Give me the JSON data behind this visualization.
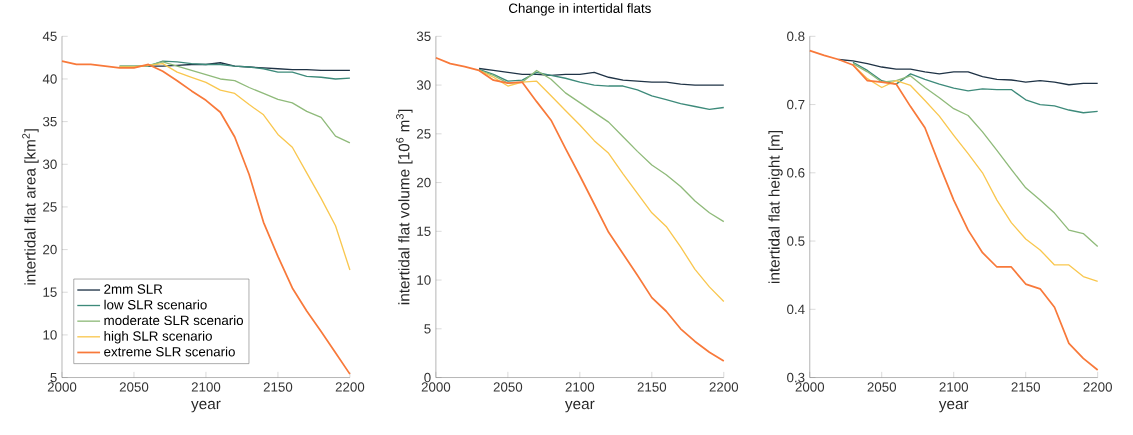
{
  "chart_data": [
    {
      "type": "line",
      "xlabel": "year",
      "ylabel": "intertidal flat area [km$^{2}$]",
      "x": [
        2000,
        2010,
        2020,
        2030,
        2040,
        2050,
        2060,
        2070,
        2080,
        2090,
        2100,
        2110,
        2120,
        2130,
        2140,
        2150,
        2160,
        2170,
        2180,
        2190,
        2200
      ],
      "series": [
        {
          "name": "2mm SLR",
          "color": "#1f3346",
          "values": [
            null,
            null,
            null,
            null,
            null,
            null,
            41.5,
            41.5,
            41.6,
            41.7,
            41.7,
            41.9,
            41.5,
            41.4,
            41.3,
            41.2,
            41.1,
            41.1,
            41.0,
            41.0,
            41.0
          ]
        },
        {
          "name": "low SLR scenario",
          "color": "#3d8a7a",
          "values": [
            null,
            null,
            null,
            null,
            41.5,
            41.5,
            41.5,
            42.1,
            42.0,
            41.8,
            41.7,
            41.7,
            41.5,
            41.4,
            41.2,
            40.8,
            40.8,
            40.3,
            40.2,
            40.0,
            40.1
          ]
        },
        {
          "name": "moderate SLR scenario",
          "color": "#8fba7a",
          "values": [
            null,
            null,
            null,
            null,
            41.5,
            41.5,
            41.6,
            42.0,
            41.5,
            41.0,
            40.5,
            40.0,
            39.8,
            39.0,
            38.3,
            37.6,
            37.2,
            36.2,
            35.5,
            33.3,
            32.5
          ]
        },
        {
          "name": "high SLR scenario",
          "color": "#f9c74f",
          "values": [
            null,
            null,
            null,
            null,
            41.4,
            41.4,
            41.6,
            41.8,
            40.8,
            40.2,
            39.6,
            38.7,
            38.3,
            37.0,
            35.8,
            33.5,
            32.0,
            29.0,
            26.0,
            22.8,
            17.6
          ]
        },
        {
          "name": "extreme SLR scenario",
          "color": "#f8793a",
          "values": [
            42.1,
            41.7,
            41.7,
            41.5,
            41.3,
            41.3,
            41.7,
            40.9,
            39.8,
            38.6,
            37.5,
            36.1,
            33.2,
            28.8,
            23.2,
            19.2,
            15.5,
            12.8,
            10.4,
            7.9,
            5.4
          ]
        }
      ],
      "xlim": [
        2000,
        2200
      ],
      "ylim": [
        5,
        45
      ],
      "xticks": [
        2000,
        2050,
        2100,
        2150,
        2200
      ],
      "yticks": [
        5,
        10,
        15,
        20,
        25,
        30,
        35,
        40,
        45
      ],
      "legend": "bottom left"
    },
    {
      "type": "line",
      "title": "Change in intertidal flats",
      "xlabel": "year",
      "ylabel": "intertidal flat volume [10$^{6}$ m$^{3}$]",
      "x": [
        2000,
        2010,
        2020,
        2030,
        2040,
        2050,
        2060,
        2070,
        2080,
        2090,
        2100,
        2110,
        2120,
        2130,
        2140,
        2150,
        2160,
        2170,
        2180,
        2190,
        2200
      ],
      "series": [
        {
          "color": "#1f3346",
          "values": [
            null,
            null,
            null,
            31.7,
            31.5,
            31.3,
            31.1,
            31.1,
            31.0,
            31.1,
            31.1,
            31.3,
            30.8,
            30.5,
            30.4,
            30.3,
            30.3,
            30.1,
            30.0,
            30.0,
            30.0
          ]
        },
        {
          "color": "#3d8a7a",
          "values": [
            null,
            null,
            null,
            31.6,
            31.1,
            30.4,
            30.5,
            31.3,
            31.0,
            30.7,
            30.3,
            30.0,
            29.9,
            29.9,
            29.5,
            28.9,
            28.5,
            28.1,
            27.8,
            27.5,
            27.7
          ]
        },
        {
          "color": "#8fba7a",
          "values": [
            null,
            null,
            null,
            31.5,
            31.0,
            30.2,
            30.3,
            31.5,
            30.6,
            29.2,
            28.2,
            27.2,
            26.2,
            24.7,
            23.2,
            21.8,
            20.8,
            19.6,
            18.1,
            16.9,
            16.0
          ]
        },
        {
          "color": "#f9c74f",
          "values": [
            null,
            null,
            null,
            31.5,
            30.8,
            29.9,
            30.3,
            30.4,
            28.9,
            27.4,
            25.9,
            24.3,
            23.0,
            20.9,
            18.9,
            16.9,
            15.5,
            13.4,
            11.1,
            9.3,
            7.8
          ]
        },
        {
          "color": "#f8793a",
          "values": [
            32.8,
            32.2,
            31.9,
            31.5,
            30.5,
            30.2,
            30.3,
            28.3,
            26.4,
            23.5,
            20.7,
            17.8,
            14.9,
            12.7,
            10.5,
            8.2,
            6.8,
            5.0,
            3.7,
            2.6,
            1.7
          ]
        }
      ],
      "xlim": [
        2000,
        2200
      ],
      "ylim": [
        0,
        35
      ],
      "xticks": [
        2000,
        2050,
        2100,
        2150,
        2200
      ],
      "yticks": [
        0,
        5,
        10,
        15,
        20,
        25,
        30,
        35
      ]
    },
    {
      "type": "line",
      "xlabel": "year",
      "ylabel": "intertidal flat height [m]",
      "x": [
        2000,
        2010,
        2020,
        2030,
        2040,
        2050,
        2060,
        2070,
        2080,
        2090,
        2100,
        2110,
        2120,
        2130,
        2140,
        2150,
        2160,
        2170,
        2180,
        2190,
        2200
      ],
      "series": [
        {
          "color": "#1f3346",
          "values": [
            null,
            null,
            0.766,
            0.764,
            0.76,
            0.755,
            0.752,
            0.752,
            0.748,
            0.745,
            0.748,
            0.748,
            0.741,
            0.737,
            0.736,
            0.733,
            0.735,
            0.733,
            0.729,
            0.731,
            0.731
          ]
        },
        {
          "color": "#3d8a7a",
          "values": [
            null,
            null,
            null,
            0.762,
            0.75,
            0.735,
            0.73,
            0.745,
            0.737,
            0.73,
            0.724,
            0.72,
            0.723,
            0.722,
            0.722,
            0.707,
            0.7,
            0.698,
            0.692,
            0.688,
            0.69
          ]
        },
        {
          "color": "#8fba7a",
          "values": [
            null,
            null,
            null,
            0.76,
            0.748,
            0.733,
            0.735,
            0.742,
            0.725,
            0.71,
            0.694,
            0.684,
            0.66,
            0.633,
            0.605,
            0.578,
            0.56,
            0.541,
            0.516,
            0.511,
            0.492
          ]
        },
        {
          "color": "#f9c74f",
          "values": [
            null,
            null,
            null,
            0.758,
            0.738,
            0.725,
            0.735,
            0.728,
            0.706,
            0.683,
            0.655,
            0.628,
            0.6,
            0.56,
            0.527,
            0.503,
            0.487,
            0.465,
            0.465,
            0.448,
            0.441
          ]
        },
        {
          "color": "#f8793a",
          "values": [
            0.779,
            0.772,
            0.766,
            0.758,
            0.735,
            0.733,
            0.73,
            0.697,
            0.666,
            0.612,
            0.56,
            0.516,
            0.483,
            0.462,
            0.462,
            0.437,
            0.43,
            0.403,
            0.35,
            0.328,
            0.311
          ]
        }
      ],
      "xlim": [
        2000,
        2200
      ],
      "ylim": [
        0.3,
        0.8
      ],
      "xticks": [
        2000,
        2050,
        2100,
        2150,
        2200
      ],
      "yticks": [
        0.3,
        0.4,
        0.5,
        0.6,
        0.7,
        0.8
      ]
    }
  ]
}
